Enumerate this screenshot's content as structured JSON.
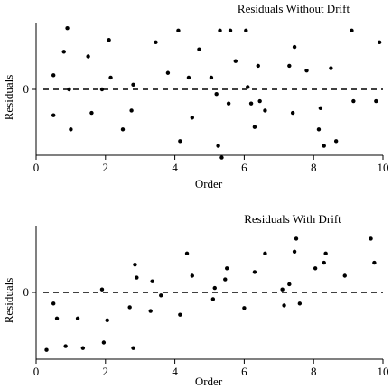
{
  "chart_data": [
    {
      "type": "scatter",
      "title": "Residuals Without Drift",
      "xlabel": "Order",
      "ylabel": "Residuals",
      "xlim": [
        0,
        10
      ],
      "ylim": [
        -1.4,
        1.4
      ],
      "xticks": [
        "0",
        "2",
        "4",
        "6",
        "8",
        "10"
      ],
      "yticks": [
        "0"
      ],
      "reference_line": {
        "y": 0,
        "style": "dashed"
      },
      "grid": false,
      "series": [
        {
          "x": [
            0.5,
            0.5,
            0.8,
            0.9,
            0.95,
            1.0,
            1.5,
            1.6,
            1.9,
            2.1,
            2.15,
            2.5,
            2.75,
            2.8,
            3.45,
            3.8,
            4.1,
            4.15,
            4.4,
            4.5,
            4.7,
            5.05,
            5.2,
            5.25,
            5.3,
            5.35,
            5.55,
            5.6,
            5.75,
            6.05,
            6.1,
            6.2,
            6.3,
            6.4,
            6.45,
            6.6,
            7.3,
            7.4,
            7.45,
            7.8,
            8.15,
            8.2,
            8.3,
            8.5,
            8.65,
            9.1,
            9.15,
            9.8,
            9.9
          ],
          "y": [
            0.3,
            -0.55,
            0.8,
            1.3,
            0.0,
            -0.85,
            0.7,
            -0.5,
            0.0,
            1.05,
            0.25,
            -0.85,
            -0.45,
            0.1,
            1.0,
            0.35,
            1.25,
            -1.1,
            0.25,
            -0.6,
            0.85,
            0.25,
            -0.1,
            -1.2,
            1.25,
            -1.45,
            -0.3,
            1.25,
            0.6,
            1.25,
            0.05,
            -0.3,
            -0.8,
            0.5,
            -0.25,
            -0.45,
            0.5,
            -0.5,
            0.9,
            0.4,
            -0.85,
            -0.4,
            -1.2,
            0.45,
            -1.1,
            1.25,
            -0.25,
            -0.25,
            1.0
          ]
        }
      ]
    },
    {
      "type": "scatter",
      "title": "Residuals With Drift",
      "xlabel": "Order",
      "ylabel": "Residuals",
      "xlim": [
        0,
        10
      ],
      "ylim": [
        -1.8,
        1.8
      ],
      "xticks": [
        "0",
        "2",
        "4",
        "6",
        "8",
        "10"
      ],
      "yticks": [
        "0"
      ],
      "reference_line": {
        "y": 0,
        "style": "dashed"
      },
      "grid": false,
      "series": [
        {
          "x": [
            0.3,
            0.5,
            0.6,
            0.85,
            1.2,
            1.35,
            1.9,
            1.95,
            2.05,
            2.7,
            2.8,
            2.85,
            2.9,
            3.3,
            3.35,
            3.6,
            4.15,
            4.35,
            4.5,
            5.1,
            5.15,
            5.45,
            5.5,
            6.0,
            6.3,
            6.6,
            7.1,
            7.15,
            7.3,
            7.45,
            7.5,
            7.6,
            8.05,
            8.3,
            8.35,
            8.9,
            9.65,
            9.75
          ],
          "y": [
            -1.55,
            -0.3,
            -0.7,
            -1.45,
            -0.7,
            -1.5,
            0.08,
            -1.35,
            -0.75,
            -0.4,
            -1.5,
            0.75,
            0.4,
            -0.5,
            0.3,
            -0.08,
            -0.6,
            1.05,
            0.45,
            -0.18,
            0.12,
            0.35,
            0.65,
            -0.42,
            0.55,
            1.05,
            0.08,
            -0.35,
            0.22,
            1.1,
            1.45,
            -0.3,
            0.65,
            0.8,
            1.05,
            0.45,
            1.45,
            0.8
          ]
        }
      ]
    }
  ]
}
